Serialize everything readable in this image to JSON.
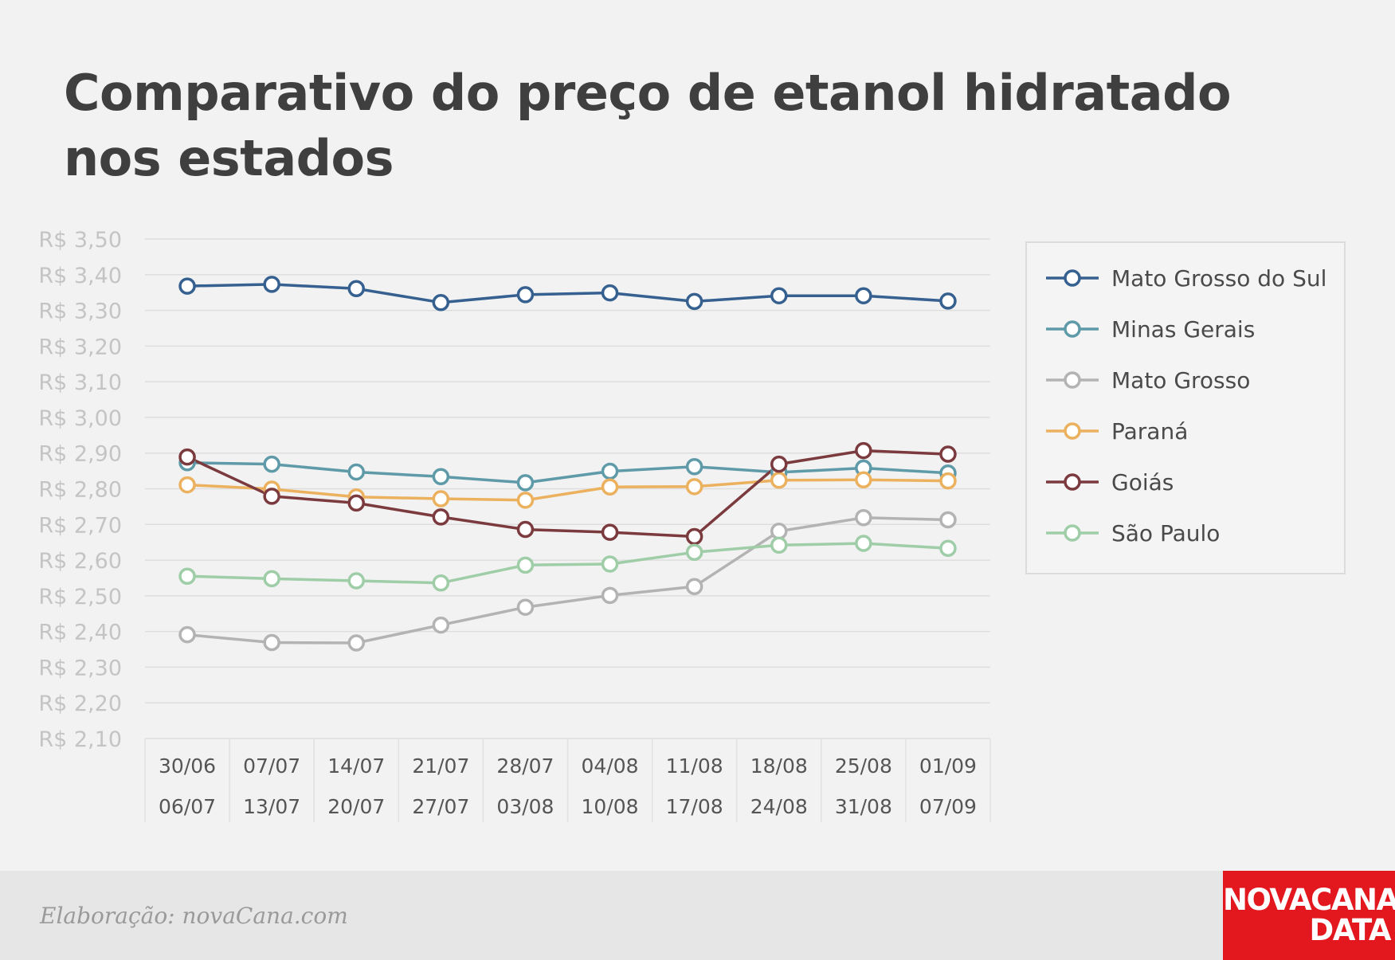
{
  "chart_data": {
    "type": "line",
    "title_lines": [
      "Comparativo do preço de etanol hidratado",
      "nos estados"
    ],
    "y_ticks": [
      "R$ 3,50",
      "R$ 3,40",
      "R$ 3,30",
      "R$ 3,20",
      "R$ 3,10",
      "R$ 3,00",
      "R$ 2,90",
      "R$ 2,80",
      "R$ 2,70",
      "R$ 2,60",
      "R$ 2,50",
      "R$ 2,40",
      "R$ 2,30",
      "R$ 2,20",
      "R$ 2,10"
    ],
    "ylim": [
      2.1,
      3.5
    ],
    "grid": true,
    "legend_position": "right",
    "categories": [
      {
        "start": "30/06",
        "end": "06/07"
      },
      {
        "start": "07/07",
        "end": "13/07"
      },
      {
        "start": "14/07",
        "end": "20/07"
      },
      {
        "start": "21/07",
        "end": "27/07"
      },
      {
        "start": "28/07",
        "end": "03/08"
      },
      {
        "start": "04/08",
        "end": "10/08"
      },
      {
        "start": "11/08",
        "end": "17/08"
      },
      {
        "start": "18/08",
        "end": "24/08"
      },
      {
        "start": "25/08",
        "end": "31/08"
      },
      {
        "start": "01/09",
        "end": "07/09"
      }
    ],
    "series": [
      {
        "name": "Mato Grosso do Sul",
        "color": "#35608f",
        "values": [
          3.368,
          3.373,
          3.361,
          3.322,
          3.344,
          3.349,
          3.325,
          3.341,
          3.341,
          3.326
        ]
      },
      {
        "name": "Minas Gerais",
        "color": "#5f9aa8",
        "values": [
          2.873,
          2.869,
          2.847,
          2.834,
          2.817,
          2.849,
          2.862,
          2.846,
          2.858,
          2.844
        ]
      },
      {
        "name": "Mato Grosso",
        "color": "#b3b3b3",
        "values": [
          2.391,
          2.369,
          2.368,
          2.418,
          2.468,
          2.501,
          2.526,
          2.681,
          2.719,
          2.713
        ]
      },
      {
        "name": "Paraná",
        "color": "#ebb15e",
        "values": [
          2.811,
          2.799,
          2.777,
          2.772,
          2.768,
          2.805,
          2.806,
          2.824,
          2.825,
          2.822
        ]
      },
      {
        "name": "Goiás",
        "color": "#7b3a3e",
        "values": [
          2.889,
          2.779,
          2.76,
          2.721,
          2.686,
          2.678,
          2.666,
          2.869,
          2.907,
          2.897
        ]
      },
      {
        "name": "São Paulo",
        "color": "#9ecda7",
        "values": [
          2.555,
          2.548,
          2.542,
          2.536,
          2.586,
          2.589,
          2.622,
          2.642,
          2.647,
          2.633
        ]
      }
    ]
  },
  "footer": {
    "credit": "Elaboração: novaCana.com",
    "logo_line1": "NOVACANA",
    "logo_line2": "DATA"
  }
}
